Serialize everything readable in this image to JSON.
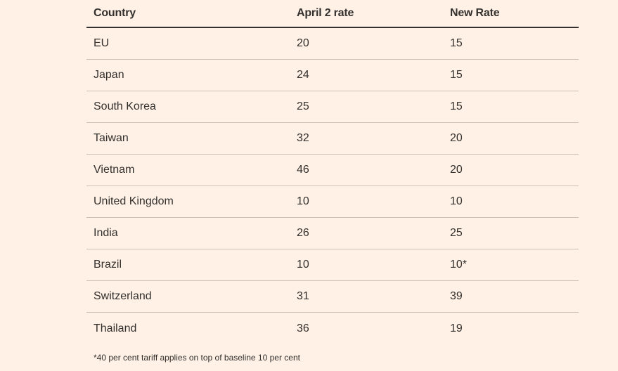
{
  "table": {
    "headers": [
      "Country",
      "April 2 rate",
      "New Rate"
    ],
    "rows": [
      [
        "EU",
        "20",
        "15"
      ],
      [
        "Japan",
        "24",
        "15"
      ],
      [
        "South Korea",
        "25",
        "15"
      ],
      [
        "Taiwan",
        "32",
        "20"
      ],
      [
        "Vietnam",
        "46",
        "20"
      ],
      [
        "United Kingdom",
        "10",
        "10"
      ],
      [
        "India",
        "26",
        "25"
      ],
      [
        "Brazil",
        "10",
        "10*"
      ],
      [
        "Switzerland",
        "31",
        "39"
      ],
      [
        "Thailand",
        "36",
        "19"
      ]
    ]
  },
  "footnote": "*40 per cent tariff applies on top of baseline 10 per cent"
}
